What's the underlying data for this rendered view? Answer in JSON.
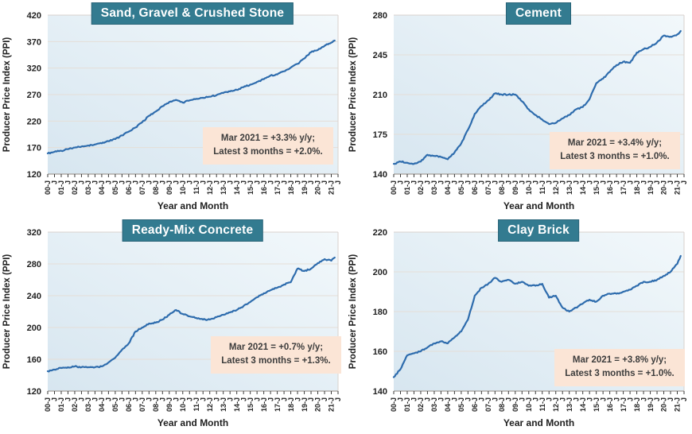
{
  "colors": {
    "title_bg": "#337b90",
    "title_border": "#2a6478",
    "title_text": "#ffffff",
    "line_blue": "#2e6cad",
    "annotation_bg": "#fbe5d6",
    "annotation_text": "#3d3d3d",
    "plot_bg_from": "#d7e6f0",
    "plot_bg_to": "#f2f8fb",
    "grid": "#e5ded7",
    "axis_line": "#a39d97",
    "tick": "#3a3a3a",
    "text": "#1f1f1f"
  },
  "x_axis": {
    "label": "Year and Month",
    "range": [
      2000,
      2021.5
    ],
    "tick_labels": [
      "00-J",
      "J",
      "01-J",
      "J",
      "02-J",
      "J",
      "03-J",
      "J",
      "04-J",
      "J",
      "05-J",
      "J",
      "06-J",
      "J",
      "07-J",
      "J",
      "08-J",
      "J",
      "09-J",
      "J",
      "10-J",
      "J",
      "11-J",
      "J",
      "12-J",
      "J",
      "13-J",
      "J",
      "14-J",
      "J",
      "15-J",
      "J",
      "16-J",
      "J",
      "17-J",
      "J",
      "18-J",
      "J",
      "19-J",
      "J",
      "20-J",
      "J",
      "21-J",
      "J"
    ]
  },
  "chart_data": [
    {
      "type": "line",
      "title": "Sand, Gravel & Crushed Stone",
      "ylabel": "Producer Price Index (PPI)",
      "xlabel": "Year and Month",
      "ylim": [
        120,
        420
      ],
      "yticks": [
        120,
        170,
        220,
        270,
        320,
        370,
        420
      ],
      "x": [
        2000,
        2000.5,
        2001,
        2001.5,
        2002,
        2002.5,
        2003,
        2003.5,
        2004,
        2004.5,
        2005,
        2005.5,
        2006,
        2006.5,
        2007,
        2007.5,
        2008,
        2008.5,
        2009,
        2009.5,
        2010,
        2010.5,
        2011,
        2011.5,
        2012,
        2012.5,
        2013,
        2013.5,
        2014,
        2014.5,
        2015,
        2015.5,
        2016,
        2016.5,
        2017,
        2017.5,
        2018,
        2018.5,
        2019,
        2019.5,
        2020,
        2020.5,
        2021,
        2021.25
      ],
      "values": [
        159,
        162,
        164,
        167,
        170,
        172,
        174,
        176,
        178,
        182,
        186,
        193,
        200,
        208,
        218,
        230,
        238,
        248,
        256,
        260,
        255,
        259,
        262,
        264,
        266,
        269,
        273,
        276,
        279,
        284,
        289,
        294,
        299,
        306,
        308,
        314,
        321,
        328,
        338,
        350,
        354,
        362,
        368,
        372
      ],
      "annotation": {
        "line1": "Mar 2021 = +3.3% y/y;",
        "line2": "Latest 3 months = +2.0%."
      }
    },
    {
      "type": "line",
      "title": "Cement",
      "ylabel": "Producer Price Index (PPI)",
      "xlabel": "Year and Month",
      "ylim": [
        140,
        280
      ],
      "yticks": [
        140,
        175,
        210,
        245,
        280
      ],
      "x": [
        2000,
        2000.5,
        2001,
        2001.5,
        2002,
        2002.5,
        2003,
        2003.5,
        2004,
        2004.5,
        2005,
        2005.5,
        2006,
        2006.5,
        2007,
        2007.5,
        2008,
        2008.5,
        2009,
        2009.5,
        2010,
        2010.5,
        2011,
        2011.5,
        2012,
        2012.5,
        2013,
        2013.5,
        2014,
        2014.5,
        2015,
        2015.5,
        2016,
        2016.5,
        2017,
        2017.5,
        2018,
        2018.5,
        2019,
        2019.5,
        2020,
        2020.5,
        2021,
        2021.25
      ],
      "values": [
        149,
        151,
        150,
        149,
        151,
        157,
        156,
        155,
        153,
        159,
        167,
        179,
        193,
        200,
        205,
        211,
        210,
        210,
        210,
        204,
        197,
        192,
        188,
        184,
        185,
        189,
        192,
        197,
        199,
        206,
        220,
        224,
        230,
        236,
        239,
        238,
        247,
        250,
        252,
        256,
        262,
        261,
        263,
        266
      ],
      "annotation": {
        "line1": "Mar 2021 = +3.4% y/y;",
        "line2": "Latest 3 months = +1.0%."
      }
    },
    {
      "type": "line",
      "title": "Ready-Mix Concrete",
      "ylabel": "Producer Price Index (PPI)",
      "xlabel": "Year and Month",
      "ylim": [
        120,
        320
      ],
      "yticks": [
        120,
        160,
        200,
        240,
        280,
        320
      ],
      "x": [
        2000,
        2000.5,
        2001,
        2001.5,
        2002,
        2002.5,
        2003,
        2003.5,
        2004,
        2004.5,
        2005,
        2005.5,
        2006,
        2006.5,
        2007,
        2007.5,
        2008,
        2008.5,
        2009,
        2009.5,
        2010,
        2010.5,
        2011,
        2011.5,
        2012,
        2012.5,
        2013,
        2013.5,
        2014,
        2014.5,
        2015,
        2015.5,
        2016,
        2016.5,
        2017,
        2017.5,
        2018,
        2018.5,
        2019,
        2019.5,
        2020,
        2020.5,
        2021,
        2021.25
      ],
      "values": [
        145,
        147,
        149,
        150,
        151,
        150,
        150,
        150,
        151,
        156,
        162,
        172,
        180,
        195,
        200,
        205,
        206,
        210,
        216,
        222,
        217,
        214,
        212,
        210,
        210,
        213,
        216,
        219,
        222,
        227,
        232,
        238,
        243,
        247,
        250,
        254,
        257,
        274,
        271,
        274,
        281,
        286,
        284,
        288
      ],
      "annotation": {
        "line1": "Mar 2021 = +0.7% y/y;",
        "line2": "Latest 3 months = +1.3%."
      }
    },
    {
      "type": "line",
      "title": "Clay Brick",
      "ylabel": "Producer Price Index (PPI)",
      "xlabel": "Year and Month",
      "ylim": [
        140,
        220
      ],
      "yticks": [
        140,
        160,
        180,
        200,
        220
      ],
      "x": [
        2000,
        2000.5,
        2001,
        2001.5,
        2002,
        2002.5,
        2003,
        2003.5,
        2004,
        2004.5,
        2005,
        2005.5,
        2006,
        2006.5,
        2007,
        2007.5,
        2008,
        2008.5,
        2009,
        2009.5,
        2010,
        2010.5,
        2011,
        2011.5,
        2012,
        2012.5,
        2013,
        2013.5,
        2014,
        2014.5,
        2015,
        2015.5,
        2016,
        2016.5,
        2017,
        2017.5,
        2018,
        2018.5,
        2019,
        2019.5,
        2020,
        2020.5,
        2021,
        2021.25
      ],
      "values": [
        147,
        151,
        158,
        159,
        160,
        162,
        164,
        165,
        164,
        167,
        170,
        176,
        188,
        192,
        194,
        197,
        195,
        196,
        194,
        195,
        193,
        193,
        194,
        187,
        188,
        182,
        180,
        182,
        184,
        186,
        185,
        188,
        189,
        189,
        190,
        191,
        193,
        195,
        195,
        196,
        198,
        200,
        204,
        208
      ],
      "annotation": {
        "line1": "Mar 2021 = +3.8% y/y;",
        "line2": "Latest 3 months = +1.0%."
      }
    }
  ]
}
